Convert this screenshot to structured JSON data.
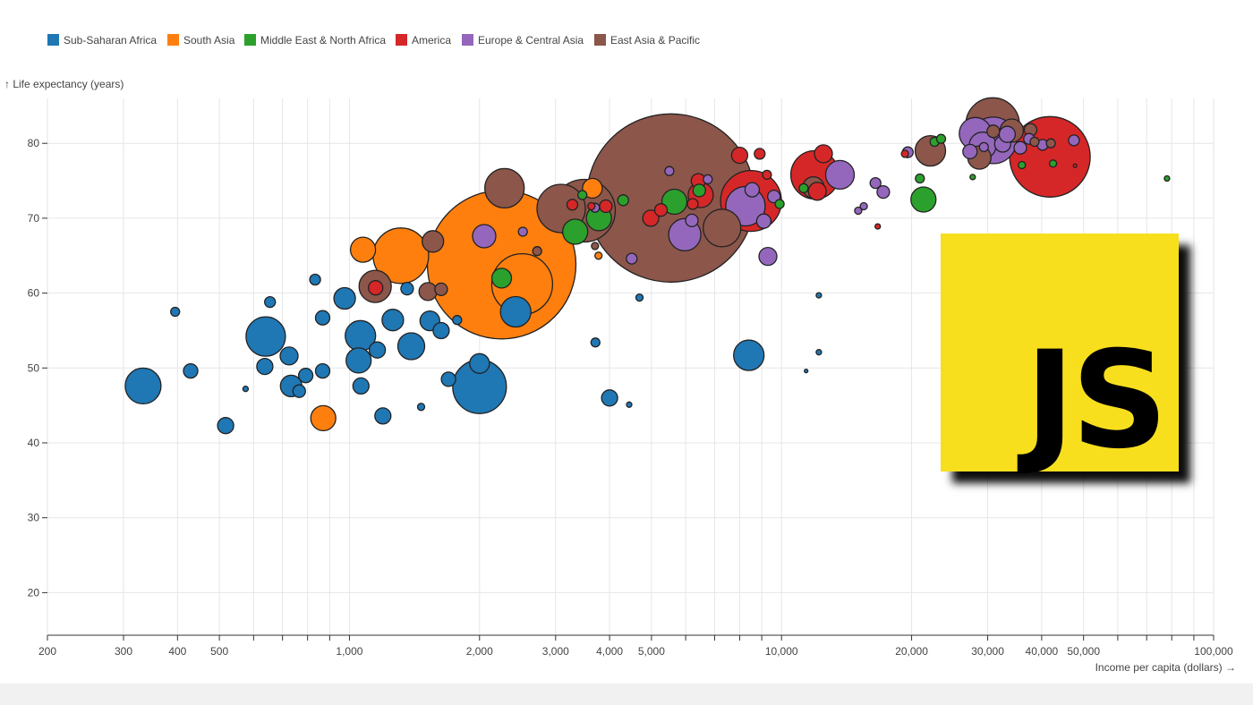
{
  "legend": {
    "items": [
      {
        "label": "Sub-Saharan Africa",
        "color": "#1f77b4"
      },
      {
        "label": "South Asia",
        "color": "#ff7f0e"
      },
      {
        "label": "Middle East & North Africa",
        "color": "#2ca02c"
      },
      {
        "label": "America",
        "color": "#d62728"
      },
      {
        "label": "Europe & Central Asia",
        "color": "#9467bd"
      },
      {
        "label": "East Asia & Pacific",
        "color": "#8c564b"
      }
    ]
  },
  "logo": {
    "text": "JS"
  },
  "chart_data": {
    "type": "scatter",
    "ylabel": "↑ Life expectancy (years)",
    "xlabel": "Income per capita (dollars) →",
    "x_scale": "log",
    "xlim": [
      200,
      100000
    ],
    "ylim": [
      14,
      85
    ],
    "grid": true,
    "legend_position": "top-left",
    "x_ticks": [
      200,
      300,
      400,
      500,
      600,
      700,
      800,
      900,
      1000,
      2000,
      3000,
      4000,
      5000,
      6000,
      7000,
      8000,
      9000,
      10000,
      20000,
      30000,
      40000,
      50000,
      60000,
      70000,
      80000,
      90000,
      100000
    ],
    "x_tick_labels": [
      "200",
      "300",
      "400",
      "500",
      "",
      "",
      "",
      "",
      "1,000",
      "2,000",
      "3,000",
      "4,000",
      "5,000",
      "",
      "",
      "",
      "",
      "10,000",
      "20,000",
      "30,000",
      "40,000",
      "50,000",
      "",
      "",
      "",
      "",
      "100,000"
    ],
    "y_ticks": [
      20,
      30,
      40,
      50,
      60,
      70,
      80
    ],
    "y_tick_labels": [
      "20",
      "30",
      "40",
      "50",
      "60",
      "70",
      "80"
    ],
    "series": [
      {
        "name": "Sub-Saharan Africa",
        "points": [
          [
            333,
            47.6,
            20
          ],
          [
            395,
            57.5,
            5
          ],
          [
            429,
            49.6,
            8
          ],
          [
            517,
            42.3,
            9
          ],
          [
            575,
            47.2,
            3
          ],
          [
            640,
            54.2,
            22
          ],
          [
            637,
            50.2,
            9
          ],
          [
            655,
            58.8,
            6
          ],
          [
            725,
            51.6,
            10
          ],
          [
            733,
            47.6,
            12
          ],
          [
            765,
            46.9,
            7
          ],
          [
            792,
            49.0,
            8
          ],
          [
            833,
            61.8,
            6
          ],
          [
            867,
            56.7,
            8
          ],
          [
            867,
            49.6,
            8
          ],
          [
            975,
            59.3,
            12
          ],
          [
            1060,
            54.3,
            17
          ],
          [
            1050,
            51.0,
            14
          ],
          [
            1063,
            47.6,
            9
          ],
          [
            1160,
            52.4,
            9
          ],
          [
            1195,
            43.6,
            9
          ],
          [
            1260,
            56.4,
            12
          ],
          [
            1360,
            60.6,
            7
          ],
          [
            1390,
            52.9,
            15
          ],
          [
            1465,
            44.8,
            4
          ],
          [
            1535,
            56.3,
            11
          ],
          [
            1630,
            55.0,
            9
          ],
          [
            1695,
            48.5,
            8
          ],
          [
            1775,
            56.4,
            5
          ],
          [
            2000,
            47.5,
            30
          ],
          [
            2000,
            50.6,
            11
          ],
          [
            2425,
            57.5,
            17
          ],
          [
            3710,
            53.4,
            5
          ],
          [
            4000,
            46.0,
            9
          ],
          [
            4440,
            45.1,
            3
          ],
          [
            4690,
            59.4,
            4
          ],
          [
            8400,
            51.7,
            17
          ],
          [
            11400,
            49.6,
            2
          ],
          [
            12200,
            52.1,
            3
          ],
          [
            12200,
            59.7,
            3
          ]
        ]
      },
      {
        "name": "South Asia",
        "points": [
          [
            870,
            43.3,
            14
          ],
          [
            1075,
            65.8,
            14
          ],
          [
            1315,
            65.0,
            31
          ],
          [
            2250,
            63.8,
            83
          ],
          [
            2510,
            61.2,
            34
          ],
          [
            3650,
            74.0,
            11
          ],
          [
            3770,
            65.0,
            4
          ]
        ]
      },
      {
        "name": "Middle East & North Africa",
        "points": [
          [
            2250,
            62.0,
            11
          ],
          [
            3330,
            68.2,
            14
          ],
          [
            3460,
            73.1,
            5
          ],
          [
            3780,
            70.0,
            14
          ],
          [
            4300,
            72.4,
            6
          ],
          [
            5650,
            72.2,
            14
          ],
          [
            6450,
            73.7,
            7
          ],
          [
            9900,
            71.9,
            5
          ],
          [
            11250,
            74.0,
            5
          ],
          [
            20900,
            75.3,
            5
          ],
          [
            21300,
            72.5,
            14
          ],
          [
            22600,
            80.2,
            5
          ],
          [
            23400,
            80.6,
            5
          ],
          [
            27700,
            75.5,
            3
          ],
          [
            36000,
            77.1,
            4
          ],
          [
            42500,
            77.3,
            4
          ],
          [
            78000,
            75.3,
            3
          ]
        ]
      },
      {
        "name": "America",
        "points": [
          [
            1150,
            60.7,
            8
          ],
          [
            3280,
            71.8,
            6
          ],
          [
            3630,
            71.6,
            4
          ],
          [
            3920,
            71.6,
            7
          ],
          [
            4980,
            70.0,
            9
          ],
          [
            5260,
            71.1,
            7
          ],
          [
            6230,
            71.9,
            6
          ],
          [
            6420,
            75.0,
            8
          ],
          [
            6500,
            73.1,
            14
          ],
          [
            8000,
            78.4,
            9
          ],
          [
            8500,
            72.3,
            34
          ],
          [
            8900,
            78.6,
            6
          ],
          [
            9250,
            75.8,
            5
          ],
          [
            11950,
            75.8,
            27
          ],
          [
            12100,
            73.6,
            10
          ],
          [
            12500,
            78.6,
            10
          ],
          [
            16700,
            68.9,
            3
          ],
          [
            19300,
            78.6,
            4
          ],
          [
            41800,
            78.2,
            45
          ],
          [
            47800,
            77.0,
            2
          ]
        ]
      },
      {
        "name": "Europe & Central Asia",
        "points": [
          [
            2050,
            67.6,
            13
          ],
          [
            2520,
            68.2,
            5
          ],
          [
            3700,
            71.4,
            5
          ],
          [
            4500,
            64.6,
            6
          ],
          [
            5500,
            76.3,
            5
          ],
          [
            6200,
            69.7,
            7
          ],
          [
            5970,
            67.8,
            18
          ],
          [
            6750,
            75.2,
            5
          ],
          [
            8250,
            71.6,
            22
          ],
          [
            8550,
            73.8,
            8
          ],
          [
            9300,
            64.9,
            10
          ],
          [
            9100,
            69.6,
            8
          ],
          [
            9600,
            72.9,
            7
          ],
          [
            13650,
            75.8,
            16
          ],
          [
            15050,
            71.0,
            4
          ],
          [
            15500,
            71.6,
            4
          ],
          [
            16500,
            74.7,
            6
          ],
          [
            17200,
            73.5,
            7
          ],
          [
            19600,
            78.8,
            6
          ],
          [
            27300,
            78.9,
            8
          ],
          [
            28100,
            81.3,
            18
          ],
          [
            29200,
            79.7,
            15
          ],
          [
            30900,
            80.4,
            26
          ],
          [
            32500,
            79.9,
            9
          ],
          [
            33300,
            81.2,
            9
          ],
          [
            35700,
            79.4,
            7
          ],
          [
            37400,
            80.6,
            6
          ],
          [
            40200,
            79.8,
            6
          ],
          [
            47500,
            80.4,
            6
          ],
          [
            29400,
            79.5,
            5
          ]
        ]
      },
      {
        "name": "East Asia & Pacific",
        "points": [
          [
            1147,
            60.9,
            18
          ],
          [
            1560,
            66.9,
            12
          ],
          [
            1520,
            60.2,
            10
          ],
          [
            1630,
            60.5,
            7
          ],
          [
            2285,
            74.0,
            22
          ],
          [
            3090,
            71.3,
            27
          ],
          [
            3490,
            71.0,
            35
          ],
          [
            5540,
            72.7,
            94
          ],
          [
            7280,
            68.7,
            21
          ],
          [
            11850,
            74.1,
            12
          ],
          [
            22100,
            79.0,
            17
          ],
          [
            28700,
            78.1,
            13
          ],
          [
            30800,
            82.5,
            30
          ],
          [
            34100,
            81.7,
            13
          ],
          [
            37700,
            81.8,
            7
          ],
          [
            42000,
            80.0,
            5
          ],
          [
            38500,
            80.2,
            5
          ],
          [
            2720,
            65.6,
            5
          ],
          [
            3700,
            66.3,
            4
          ],
          [
            30900,
            81.6,
            7
          ]
        ]
      }
    ]
  }
}
